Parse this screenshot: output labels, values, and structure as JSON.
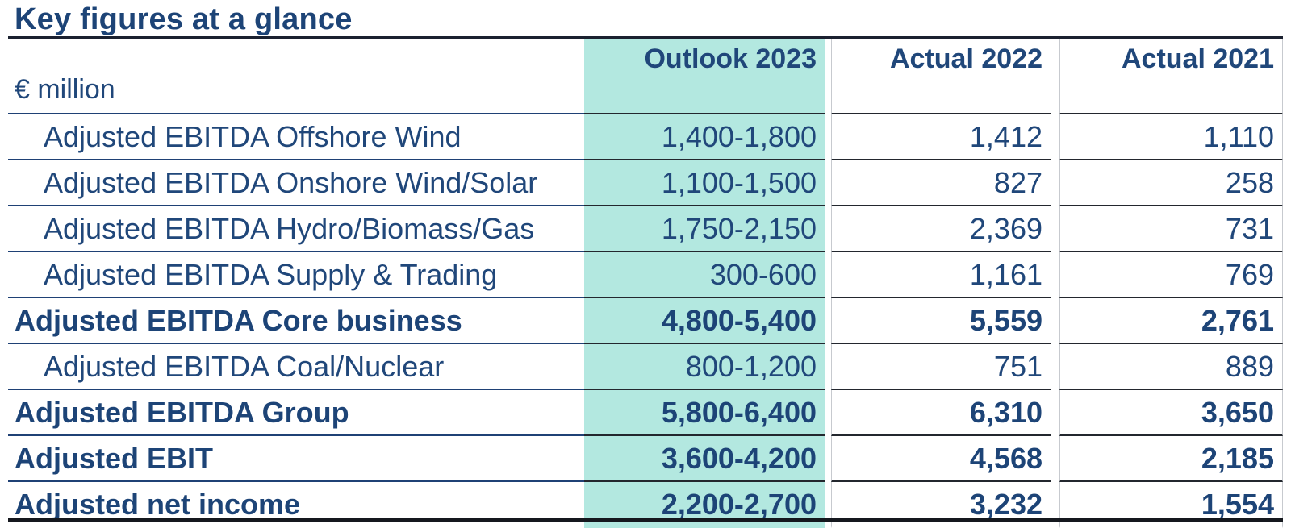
{
  "title": "Key figures at a glance",
  "unit_label": "€ million",
  "columns": [
    "Outlook 2023",
    "Actual 2022",
    "Actual 2021"
  ],
  "colors": {
    "navy_text": "#1d4477",
    "teal_highlight": "#b3e8e0",
    "separator_navy": "#1f4175",
    "separator_dark": "#23272e",
    "title_rule": "#1b2130",
    "bottom_rule": "#15181e",
    "cell_border_gray": "#c7cacf"
  },
  "chart_data": {
    "type": "table",
    "title": "Key figures at a glance",
    "unit": "€ million",
    "columns": [
      "Outlook 2023",
      "Actual 2022",
      "Actual 2021"
    ],
    "highlighted_column": "Outlook 2023",
    "rows": [
      {
        "label": "Adjusted EBITDA Offshore Wind",
        "indent": true,
        "bold": false,
        "values": [
          "1,400-1,800",
          "1,412",
          "1,110"
        ]
      },
      {
        "label": "Adjusted EBITDA Onshore Wind/Solar",
        "indent": true,
        "bold": false,
        "values": [
          "1,100-1,500",
          "827",
          "258"
        ]
      },
      {
        "label": "Adjusted EBITDA Hydro/Biomass/Gas",
        "indent": true,
        "bold": false,
        "values": [
          "1,750-2,150",
          "2,369",
          "731"
        ]
      },
      {
        "label": "Adjusted EBITDA Supply & Trading",
        "indent": true,
        "bold": false,
        "values": [
          "300-600",
          "1,161",
          "769"
        ]
      },
      {
        "label": "Adjusted EBITDA Core business",
        "indent": false,
        "bold": true,
        "values": [
          "4,800-5,400",
          "5,559",
          "2,761"
        ]
      },
      {
        "label": "Adjusted EBITDA Coal/Nuclear",
        "indent": true,
        "bold": false,
        "values": [
          "800-1,200",
          "751",
          "889"
        ]
      },
      {
        "label": "Adjusted EBITDA Group",
        "indent": false,
        "bold": true,
        "values": [
          "5,800-6,400",
          "6,310",
          "3,650"
        ]
      },
      {
        "label": "Adjusted EBIT",
        "indent": false,
        "bold": true,
        "values": [
          "3,600-4,200",
          "4,568",
          "2,185"
        ]
      },
      {
        "label": "Adjusted net income",
        "indent": false,
        "bold": true,
        "values": [
          "2,200-2,700",
          "3,232",
          "1,554"
        ]
      }
    ]
  }
}
